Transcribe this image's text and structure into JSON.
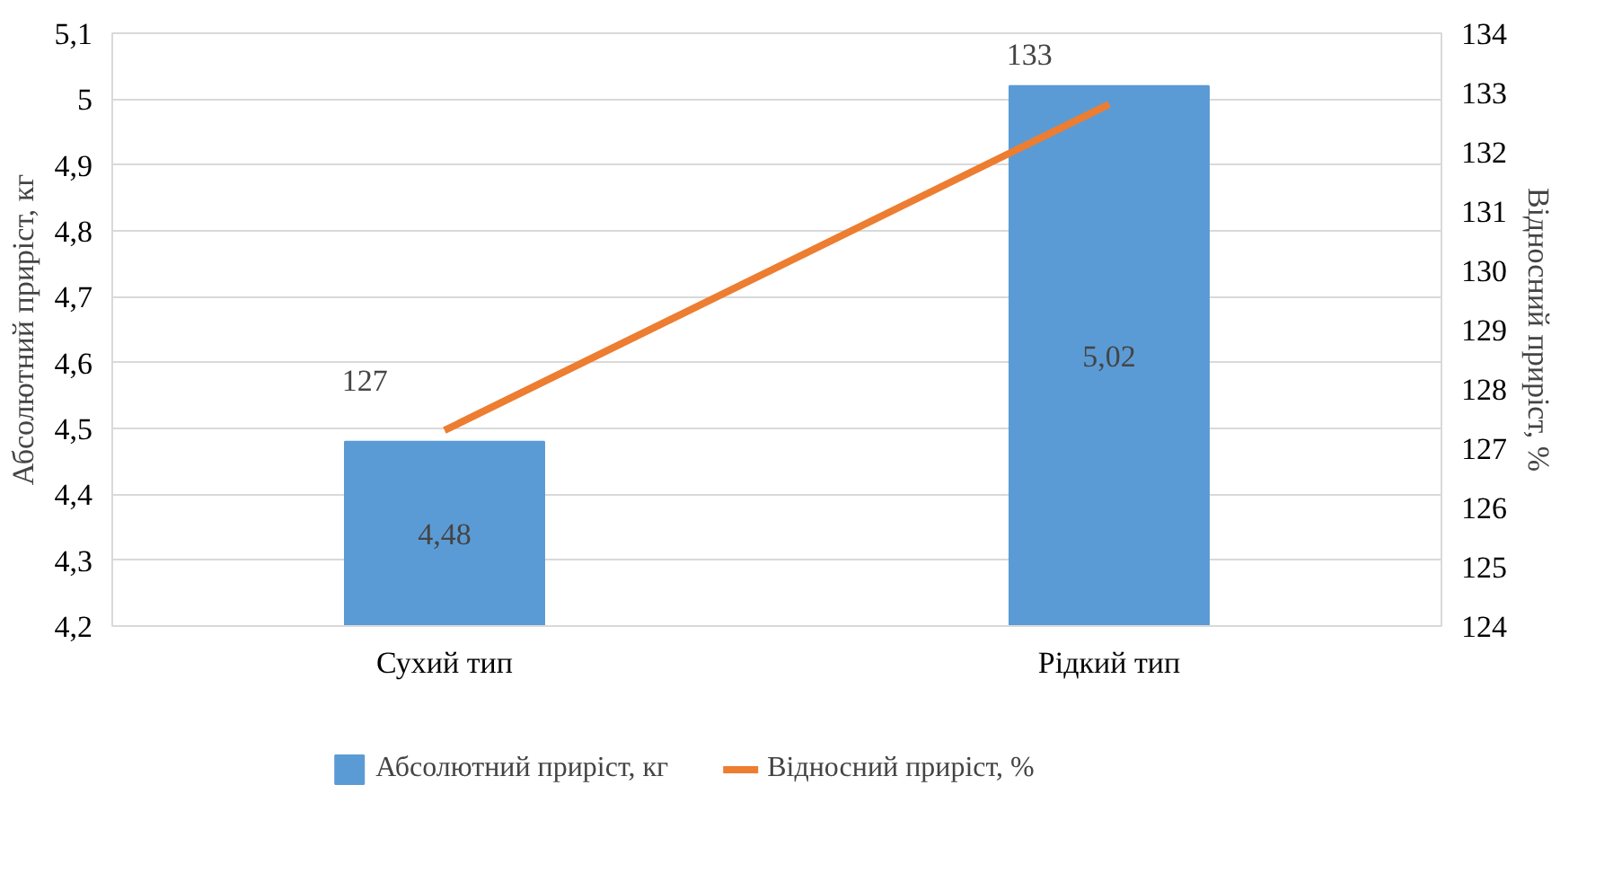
{
  "chart_data": {
    "type": "bar",
    "categories": [
      "Сухий тип",
      "Рідкий тип"
    ],
    "ylabel": "Абсолютний приріст, кг",
    "y2label": "Відносний приріст, %",
    "ylim": [
      4.2,
      5.1
    ],
    "yticks": [
      {
        "value": 4.2,
        "label": "4,2"
      },
      {
        "value": 4.3,
        "label": "4,3"
      },
      {
        "value": 4.4,
        "label": "4,4"
      },
      {
        "value": 4.5,
        "label": "4,5"
      },
      {
        "value": 4.6,
        "label": "4,6"
      },
      {
        "value": 4.7,
        "label": "4,7"
      },
      {
        "value": 4.8,
        "label": "4,8"
      },
      {
        "value": 4.9,
        "label": "4,9"
      },
      {
        "value": 5.0,
        "label": "5"
      },
      {
        "value": 5.1,
        "label": "5,1"
      }
    ],
    "y2lim": [
      124,
      134
    ],
    "y2ticks": [
      124,
      125,
      126,
      127,
      128,
      129,
      130,
      131,
      132,
      133,
      134
    ],
    "grid": "y",
    "legend": "bottom",
    "series": [
      {
        "name": "Абсолютний приріст, кг",
        "type": "bar",
        "color": "#5b9bd5",
        "values": [
          4.48,
          5.02
        ],
        "value_labels": [
          "4,48",
          "5,02"
        ]
      },
      {
        "name": "Відносний приріст, %",
        "type": "line",
        "axis": "y2",
        "color": "#ed7d31",
        "values": [
          127.3,
          132.8
        ],
        "value_labels": [
          "127",
          "133"
        ]
      }
    ]
  }
}
